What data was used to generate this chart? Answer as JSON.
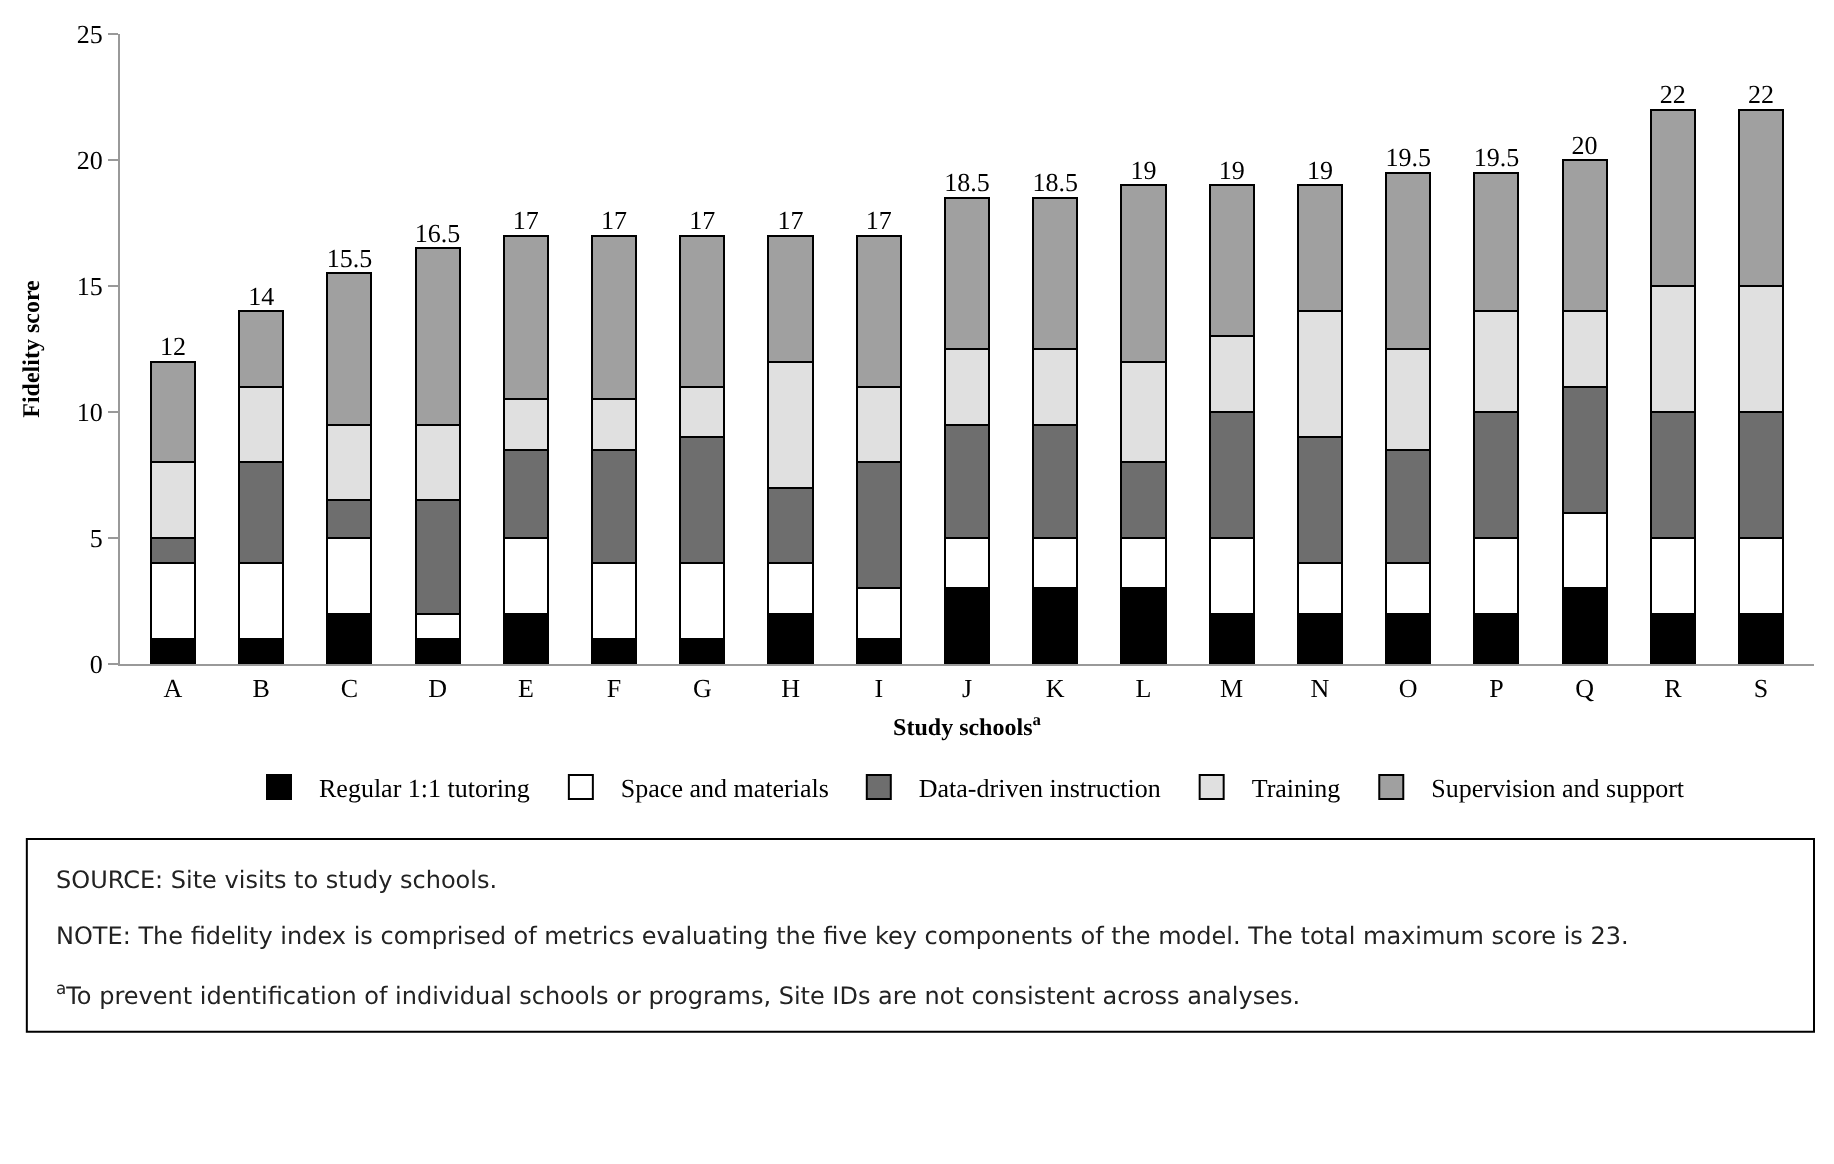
{
  "chart_data": {
    "type": "bar",
    "stacked": true,
    "xlabel": "Study schools$^{a}$",
    "ylabel": "Fidelity score",
    "categories": [
      "A",
      "B",
      "C",
      "D",
      "E",
      "F",
      "G",
      "H",
      "I",
      "J",
      "K",
      "L",
      "M",
      "N",
      "O",
      "P",
      "Q",
      "R",
      "S"
    ],
    "series": [
      {
        "name": "Regular 1:1 tutoring",
        "color": "#000000",
        "values": [
          1,
          1,
          2,
          1,
          2,
          1,
          1,
          2,
          1,
          3,
          3,
          3,
          2,
          2,
          2,
          2,
          3,
          2,
          2
        ]
      },
      {
        "name": "Space and materials",
        "color": "#ffffff",
        "values": [
          3,
          3,
          3,
          1,
          3,
          3,
          3,
          2,
          2,
          2,
          2,
          2,
          3,
          2,
          2,
          3,
          3,
          3,
          3
        ]
      },
      {
        "name": "Data-driven instruction",
        "color": "#6e6e6e",
        "values": [
          1,
          4,
          1.5,
          4.5,
          3.5,
          4.5,
          5,
          3,
          5,
          4.5,
          4.5,
          3,
          5,
          5,
          4.5,
          5,
          5,
          5,
          5
        ]
      },
      {
        "name": "Training",
        "color": "#e0e0e0",
        "values": [
          3,
          3,
          3,
          3,
          2,
          2,
          2,
          5,
          3,
          3,
          3,
          4,
          3,
          5,
          4,
          4,
          3,
          5,
          5
        ]
      },
      {
        "name": "Supervision and support",
        "color": "#a0a0a0",
        "values": [
          4,
          3,
          6,
          7,
          6.5,
          6.5,
          6,
          5,
          6,
          6,
          6,
          7,
          6,
          5,
          7,
          5.5,
          6,
          7,
          7
        ]
      }
    ],
    "totals": [
      "12",
      "14",
      "15.5",
      "16.5",
      "17",
      "17",
      "17",
      "17",
      "17",
      "18.5",
      "18.5",
      "19",
      "19",
      "19",
      "19.5",
      "19.5",
      "20",
      "22",
      "22"
    ],
    "ylim": [
      0,
      25
    ],
    "yticks": [
      0,
      5,
      10,
      15,
      20,
      25
    ],
    "legend": "bottom",
    "annotations": [
      "SOURCE: Site visits to study schools.",
      "NOTE: The fidelity index is comprised of metrics evaluating the five key components of the model. The total maximum score is 23.",
      "$^{a}$To prevent identification of individual schools or programs, Site IDs are not consistent across analyses."
    ]
  }
}
